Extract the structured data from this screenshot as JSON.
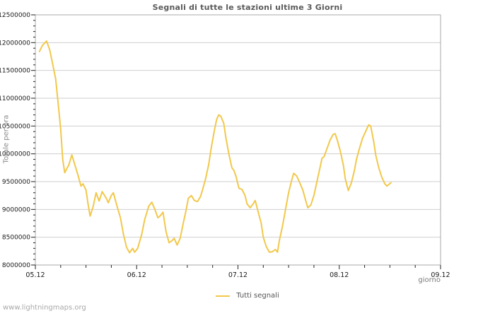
{
  "watermark": "www.lightningmaps.org",
  "legend": {
    "label": "Tutti segnali",
    "swatch_color": "#f2c84b"
  },
  "colors": {
    "line": "#f2c84b",
    "grid": "#cfcfcf",
    "frame": "#a8a8a8",
    "tick": "#222222",
    "tick_label": "#1a1a1a",
    "title": "#5a5a5a",
    "axis_title": "#7a7a7a",
    "watermark": "#a8a8a8",
    "background": "#ffffff"
  },
  "chart_data": {
    "type": "line",
    "title": "Segnali di tutte le stazioni ultime 3 Giorni",
    "xlabel": "giorno",
    "ylabel": "Totale per ora",
    "xlim": [
      0,
      4
    ],
    "ylim": [
      8000000,
      12500000
    ],
    "x_tick_labels": [
      "05.12",
      "06.12",
      "07.12",
      "08.12",
      "09.12"
    ],
    "y_tick_labels": [
      "8000000",
      "8500000",
      "9000000",
      "9500000",
      "10000000",
      "10500000",
      "11000000",
      "11500000",
      "12000000",
      "12500000"
    ],
    "y_tick_step": 500000,
    "y_minor_step": 100000,
    "x_minor_step": 0.25,
    "grid": "horizontal-only",
    "legend_position": "bottom-center",
    "series": [
      {
        "name": "Tutti segnali",
        "color": "#f2c84b",
        "points": [
          [
            0.04,
            11840000
          ],
          [
            0.07,
            11950000
          ],
          [
            0.11,
            12030000
          ],
          [
            0.14,
            11880000
          ],
          [
            0.17,
            11620000
          ],
          [
            0.2,
            11350000
          ],
          [
            0.22,
            11000000
          ],
          [
            0.25,
            10450000
          ],
          [
            0.27,
            9900000
          ],
          [
            0.29,
            9660000
          ],
          [
            0.31,
            9730000
          ],
          [
            0.33,
            9800000
          ],
          [
            0.36,
            9980000
          ],
          [
            0.39,
            9800000
          ],
          [
            0.42,
            9620000
          ],
          [
            0.45,
            9420000
          ],
          [
            0.47,
            9460000
          ],
          [
            0.5,
            9350000
          ],
          [
            0.52,
            9100000
          ],
          [
            0.54,
            8880000
          ],
          [
            0.57,
            9050000
          ],
          [
            0.6,
            9300000
          ],
          [
            0.63,
            9150000
          ],
          [
            0.66,
            9320000
          ],
          [
            0.7,
            9200000
          ],
          [
            0.72,
            9120000
          ],
          [
            0.75,
            9250000
          ],
          [
            0.77,
            9300000
          ],
          [
            0.8,
            9100000
          ],
          [
            0.84,
            8850000
          ],
          [
            0.87,
            8550000
          ],
          [
            0.9,
            8320000
          ],
          [
            0.93,
            8220000
          ],
          [
            0.96,
            8300000
          ],
          [
            0.98,
            8230000
          ],
          [
            1.01,
            8300000
          ],
          [
            1.05,
            8550000
          ],
          [
            1.08,
            8820000
          ],
          [
            1.12,
            9060000
          ],
          [
            1.15,
            9130000
          ],
          [
            1.18,
            9000000
          ],
          [
            1.21,
            8850000
          ],
          [
            1.23,
            8880000
          ],
          [
            1.26,
            8950000
          ],
          [
            1.29,
            8600000
          ],
          [
            1.32,
            8400000
          ],
          [
            1.35,
            8440000
          ],
          [
            1.37,
            8480000
          ],
          [
            1.4,
            8360000
          ],
          [
            1.43,
            8480000
          ],
          [
            1.46,
            8750000
          ],
          [
            1.49,
            9000000
          ],
          [
            1.51,
            9200000
          ],
          [
            1.54,
            9250000
          ],
          [
            1.57,
            9160000
          ],
          [
            1.6,
            9140000
          ],
          [
            1.63,
            9230000
          ],
          [
            1.65,
            9350000
          ],
          [
            1.68,
            9550000
          ],
          [
            1.71,
            9800000
          ],
          [
            1.74,
            10150000
          ],
          [
            1.77,
            10450000
          ],
          [
            1.79,
            10620000
          ],
          [
            1.81,
            10700000
          ],
          [
            1.83,
            10680000
          ],
          [
            1.86,
            10550000
          ],
          [
            1.88,
            10300000
          ],
          [
            1.91,
            10000000
          ],
          [
            1.94,
            9750000
          ],
          [
            1.96,
            9700000
          ],
          [
            1.98,
            9600000
          ],
          [
            2.01,
            9380000
          ],
          [
            2.04,
            9360000
          ],
          [
            2.07,
            9250000
          ],
          [
            2.09,
            9100000
          ],
          [
            2.12,
            9030000
          ],
          [
            2.15,
            9100000
          ],
          [
            2.17,
            9160000
          ],
          [
            2.2,
            8950000
          ],
          [
            2.23,
            8750000
          ],
          [
            2.25,
            8500000
          ],
          [
            2.28,
            8330000
          ],
          [
            2.31,
            8230000
          ],
          [
            2.34,
            8240000
          ],
          [
            2.37,
            8280000
          ],
          [
            2.39,
            8230000
          ],
          [
            2.41,
            8450000
          ],
          [
            2.44,
            8700000
          ],
          [
            2.47,
            9000000
          ],
          [
            2.5,
            9300000
          ],
          [
            2.53,
            9520000
          ],
          [
            2.55,
            9650000
          ],
          [
            2.58,
            9600000
          ],
          [
            2.61,
            9480000
          ],
          [
            2.64,
            9350000
          ],
          [
            2.67,
            9150000
          ],
          [
            2.69,
            9030000
          ],
          [
            2.72,
            9080000
          ],
          [
            2.75,
            9250000
          ],
          [
            2.78,
            9500000
          ],
          [
            2.81,
            9750000
          ],
          [
            2.83,
            9920000
          ],
          [
            2.85,
            9950000
          ],
          [
            2.88,
            10100000
          ],
          [
            2.91,
            10250000
          ],
          [
            2.94,
            10350000
          ],
          [
            2.96,
            10360000
          ],
          [
            2.98,
            10250000
          ],
          [
            3.01,
            10050000
          ],
          [
            3.04,
            9800000
          ],
          [
            3.06,
            9550000
          ],
          [
            3.09,
            9340000
          ],
          [
            3.12,
            9480000
          ],
          [
            3.15,
            9700000
          ],
          [
            3.17,
            9900000
          ],
          [
            3.2,
            10100000
          ],
          [
            3.23,
            10280000
          ],
          [
            3.26,
            10400000
          ],
          [
            3.29,
            10520000
          ],
          [
            3.31,
            10500000
          ],
          [
            3.34,
            10220000
          ],
          [
            3.36,
            9980000
          ],
          [
            3.39,
            9750000
          ],
          [
            3.42,
            9580000
          ],
          [
            3.45,
            9460000
          ],
          [
            3.47,
            9420000
          ],
          [
            3.51,
            9480000
          ]
        ]
      }
    ]
  }
}
